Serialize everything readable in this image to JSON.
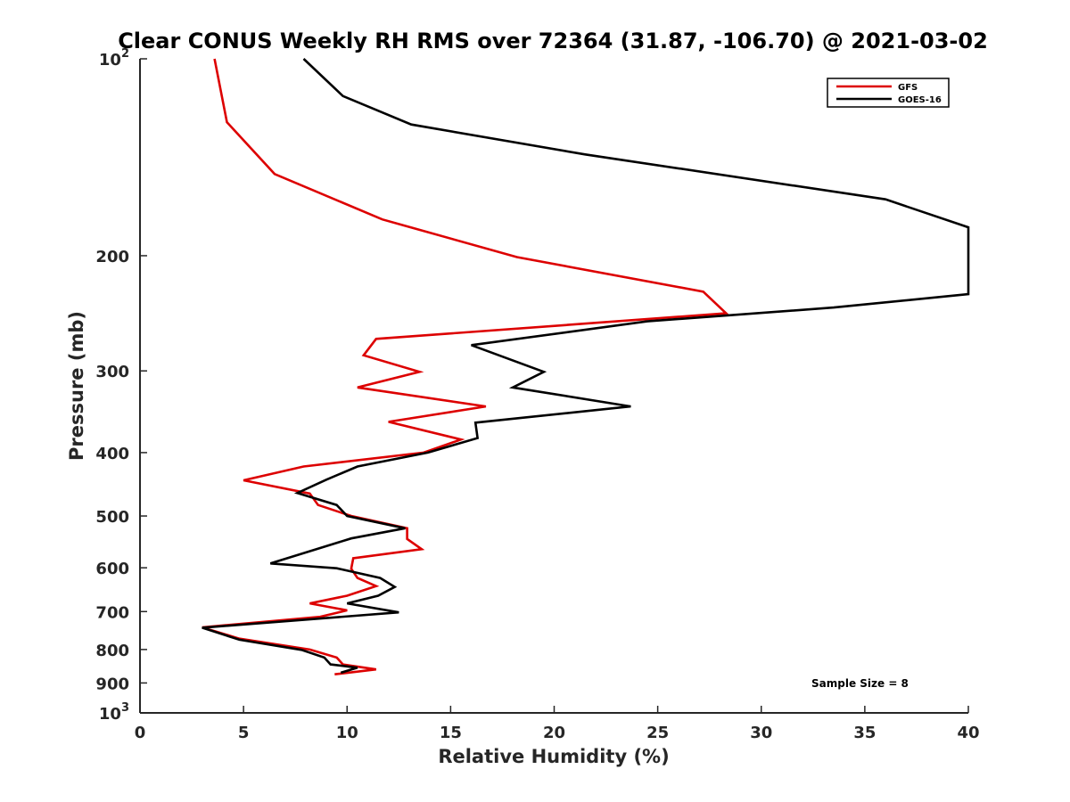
{
  "chart_data": {
    "type": "line",
    "title": "Clear CONUS Weekly RH RMS over 72364 (31.87, -106.70) @ 2021-03-02",
    "xlabel": "Relative Humidity (%)",
    "ylabel": "Pressure (mb)",
    "xlim": [
      0,
      40
    ],
    "ylim": [
      1000,
      100
    ],
    "y_scale": "log",
    "y_reversed": true,
    "grid": false,
    "legend_position": "top-right",
    "x_ticks": [
      0,
      5,
      10,
      15,
      20,
      25,
      30,
      35,
      40
    ],
    "y_ticks": [
      {
        "value": 100,
        "label": "10",
        "sup": "2"
      },
      {
        "value": 200,
        "label": "200",
        "sup": ""
      },
      {
        "value": 300,
        "label": "300",
        "sup": ""
      },
      {
        "value": 400,
        "label": "400",
        "sup": ""
      },
      {
        "value": 500,
        "label": "500",
        "sup": ""
      },
      {
        "value": 600,
        "label": "600",
        "sup": ""
      },
      {
        "value": 700,
        "label": "700",
        "sup": ""
      },
      {
        "value": 800,
        "label": "800",
        "sup": ""
      },
      {
        "value": 900,
        "label": "900",
        "sup": ""
      },
      {
        "value": 1000,
        "label": "10",
        "sup": "3"
      }
    ],
    "annotation": "Sample Size = 8",
    "series": [
      {
        "name": "GFS",
        "color": "#dd0000",
        "points": [
          [
            3.6,
            100
          ],
          [
            4.2,
            125
          ],
          [
            6.5,
            150
          ],
          [
            11.7,
            176
          ],
          [
            18.2,
            201
          ],
          [
            27.2,
            227
          ],
          [
            28.3,
            245
          ],
          [
            11.4,
            268
          ],
          [
            10.8,
            284
          ],
          [
            13.5,
            301
          ],
          [
            10.5,
            318
          ],
          [
            16.7,
            340
          ],
          [
            12.0,
            359
          ],
          [
            15.5,
            382
          ],
          [
            13.7,
            400
          ],
          [
            7.9,
            420
          ],
          [
            5.0,
            441
          ],
          [
            8.2,
            462
          ],
          [
            8.6,
            481
          ],
          [
            10.2,
            500
          ],
          [
            12.9,
            522
          ],
          [
            12.9,
            542
          ],
          [
            13.6,
            562
          ],
          [
            10.3,
            580
          ],
          [
            10.2,
            602
          ],
          [
            10.5,
            622
          ],
          [
            11.4,
            640
          ],
          [
            10.0,
            662
          ],
          [
            8.2,
            680
          ],
          [
            10.0,
            697
          ],
          [
            8.7,
            713
          ],
          [
            3.0,
            740
          ],
          [
            4.8,
            770
          ],
          [
            8.2,
            800
          ],
          [
            9.5,
            823
          ],
          [
            9.8,
            843
          ],
          [
            11.4,
            858
          ],
          [
            9.4,
            873
          ]
        ]
      },
      {
        "name": "GOES-16",
        "color": "#000000",
        "points": [
          [
            7.9,
            100
          ],
          [
            9.8,
            114
          ],
          [
            13.1,
            126
          ],
          [
            21.5,
            140
          ],
          [
            36.0,
            164
          ],
          [
            40.0,
            181
          ],
          [
            40.0,
            229
          ],
          [
            33.5,
            240
          ],
          [
            24.5,
            252
          ],
          [
            16.0,
            274
          ],
          [
            19.5,
            301
          ],
          [
            18.0,
            318
          ],
          [
            23.7,
            340
          ],
          [
            16.2,
            360
          ],
          [
            16.3,
            380
          ],
          [
            13.9,
            400
          ],
          [
            10.5,
            420
          ],
          [
            9.0,
            440
          ],
          [
            7.6,
            461
          ],
          [
            9.5,
            481
          ],
          [
            10.0,
            500
          ],
          [
            12.8,
            522
          ],
          [
            10.2,
            541
          ],
          [
            6.3,
            591
          ],
          [
            9.5,
            601
          ],
          [
            11.6,
            622
          ],
          [
            12.3,
            642
          ],
          [
            11.5,
            662
          ],
          [
            10.0,
            680
          ],
          [
            12.5,
            702
          ],
          [
            3.0,
            741
          ],
          [
            4.8,
            773
          ],
          [
            7.8,
            801
          ],
          [
            8.9,
            823
          ],
          [
            9.2,
            843
          ],
          [
            10.5,
            853
          ],
          [
            9.7,
            868
          ]
        ]
      }
    ]
  }
}
